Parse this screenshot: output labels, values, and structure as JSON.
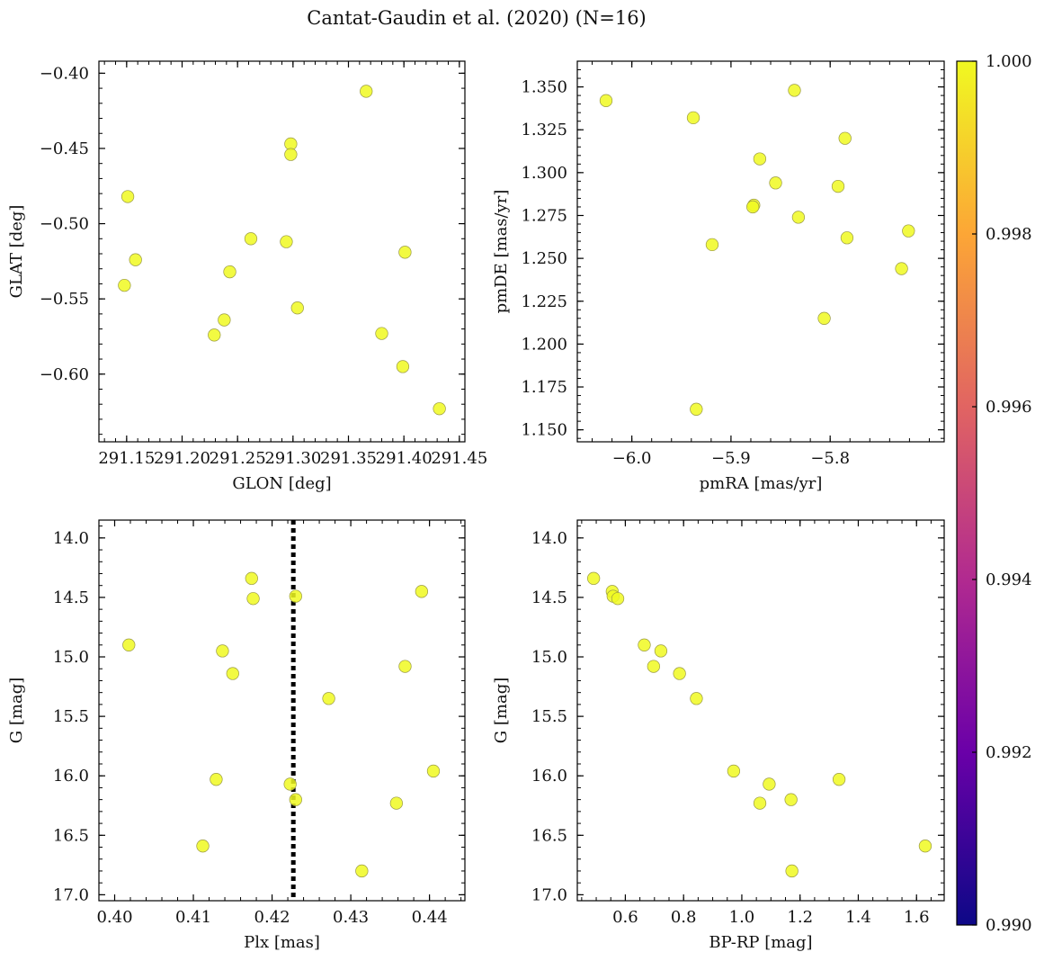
{
  "figure": {
    "title": "Cantat-Gaudin et al. (2020) (N=16)",
    "marker_color": "#f0f921",
    "colorbar": {
      "min": 0.99,
      "max": 1.0,
      "ticks": [
        "0.990",
        "0.992",
        "0.994",
        "0.996",
        "0.998",
        "1.000"
      ],
      "colormap": [
        "#0d0887",
        "#6a00a8",
        "#b12a90",
        "#e16462",
        "#fca636",
        "#f0f921"
      ]
    }
  },
  "chart_data": [
    {
      "type": "scatter",
      "xlabel": "GLON [deg]",
      "ylabel": "GLAT [deg]",
      "xlim": [
        291.125,
        291.455
      ],
      "ylim": [
        -0.645,
        -0.392
      ],
      "xticks": [
        291.15,
        291.2,
        291.25,
        291.3,
        291.35,
        291.4,
        291.45
      ],
      "xtick_labels": [
        "291.15",
        "291.20",
        "291.25",
        "291.30",
        "291.35",
        "291.40",
        "291.45"
      ],
      "yticks": [
        -0.4,
        -0.45,
        -0.5,
        -0.55,
        -0.6
      ],
      "ytick_labels": [
        "−0.40",
        "−0.45",
        "−0.50",
        "−0.55",
        "−0.60"
      ],
      "x_minor_step": 0.01,
      "y_minor_step": 0.01,
      "invert_y": false,
      "points": [
        [
          291.151,
          -0.482
        ],
        [
          291.158,
          -0.524
        ],
        [
          291.148,
          -0.541
        ],
        [
          291.229,
          -0.574
        ],
        [
          291.238,
          -0.564
        ],
        [
          291.243,
          -0.532
        ],
        [
          291.262,
          -0.51
        ],
        [
          291.294,
          -0.512
        ],
        [
          291.298,
          -0.447
        ],
        [
          291.298,
          -0.454
        ],
        [
          291.304,
          -0.556
        ],
        [
          291.366,
          -0.412
        ],
        [
          291.38,
          -0.573
        ],
        [
          291.401,
          -0.519
        ],
        [
          291.399,
          -0.595
        ],
        [
          291.432,
          -0.623
        ]
      ]
    },
    {
      "type": "scatter",
      "xlabel": "pmRA [mas/yr]",
      "ylabel": "pmDE [mas/yr]",
      "xlim": [
        -6.055,
        -5.685
      ],
      "ylim": [
        1.143,
        1.365
      ],
      "xticks": [
        -6.0,
        -5.9,
        -5.8
      ],
      "xtick_labels": [
        "−6.0",
        "−5.9",
        "−5.8"
      ],
      "yticks": [
        1.15,
        1.175,
        1.2,
        1.225,
        1.25,
        1.275,
        1.3,
        1.325,
        1.35
      ],
      "ytick_labels": [
        "1.150",
        "1.175",
        "1.200",
        "1.225",
        "1.250",
        "1.275",
        "1.300",
        "1.325",
        "1.350"
      ],
      "x_minor_step": 0.02,
      "y_minor_step": 0.005,
      "invert_y": false,
      "points": [
        [
          -6.026,
          1.342
        ],
        [
          -5.938,
          1.332
        ],
        [
          -5.935,
          1.162
        ],
        [
          -5.919,
          1.258
        ],
        [
          -5.877,
          1.281
        ],
        [
          -5.878,
          1.28
        ],
        [
          -5.871,
          1.308
        ],
        [
          -5.855,
          1.294
        ],
        [
          -5.836,
          1.348
        ],
        [
          -5.832,
          1.274
        ],
        [
          -5.806,
          1.215
        ],
        [
          -5.792,
          1.292
        ],
        [
          -5.785,
          1.32
        ],
        [
          -5.783,
          1.262
        ],
        [
          -5.728,
          1.244
        ],
        [
          -5.721,
          1.266
        ]
      ]
    },
    {
      "type": "scatter",
      "xlabel": "Plx [mas]",
      "ylabel": "G [mag]",
      "xlim": [
        0.398,
        0.4445
      ],
      "ylim": [
        13.85,
        17.05
      ],
      "xticks": [
        0.4,
        0.41,
        0.42,
        0.43,
        0.44
      ],
      "xtick_labels": [
        "0.40",
        "0.41",
        "0.42",
        "0.43",
        "0.44"
      ],
      "yticks": [
        14.0,
        14.5,
        15.0,
        15.5,
        16.0,
        16.5,
        17.0
      ],
      "ytick_labels": [
        "14.0",
        "14.5",
        "15.0",
        "15.5",
        "16.0",
        "16.5",
        "17.0"
      ],
      "x_minor_step": 0.002,
      "y_minor_step": 0.1,
      "invert_y": true,
      "vline": 0.4227,
      "points": [
        [
          0.4018,
          14.9
        ],
        [
          0.4112,
          16.59
        ],
        [
          0.4129,
          16.03
        ],
        [
          0.4137,
          14.95
        ],
        [
          0.415,
          15.14
        ],
        [
          0.4174,
          14.34
        ],
        [
          0.4176,
          14.51
        ],
        [
          0.4223,
          16.07
        ],
        [
          0.423,
          16.2
        ],
        [
          0.423,
          14.49
        ],
        [
          0.4272,
          15.35
        ],
        [
          0.4314,
          16.8
        ],
        [
          0.4358,
          16.23
        ],
        [
          0.4369,
          15.08
        ],
        [
          0.439,
          14.45
        ],
        [
          0.4405,
          15.96
        ]
      ]
    },
    {
      "type": "scatter",
      "xlabel": "BP-RP [mag]",
      "ylabel": "G [mag]",
      "xlim": [
        0.435,
        1.695
      ],
      "ylim": [
        13.85,
        17.05
      ],
      "xticks": [
        0.6,
        0.8,
        1.0,
        1.2,
        1.4,
        1.6
      ],
      "xtick_labels": [
        "0.6",
        "0.8",
        "1.0",
        "1.2",
        "1.4",
        "1.6"
      ],
      "yticks": [
        14.0,
        14.5,
        15.0,
        15.5,
        16.0,
        16.5,
        17.0
      ],
      "ytick_labels": [
        "14.0",
        "14.5",
        "15.0",
        "15.5",
        "16.0",
        "16.5",
        "17.0"
      ],
      "x_minor_step": 0.05,
      "y_minor_step": 0.1,
      "invert_y": true,
      "points": [
        [
          0.491,
          14.34
        ],
        [
          0.555,
          14.45
        ],
        [
          0.558,
          14.49
        ],
        [
          0.574,
          14.51
        ],
        [
          0.665,
          14.9
        ],
        [
          0.722,
          14.95
        ],
        [
          0.697,
          15.08
        ],
        [
          0.786,
          15.14
        ],
        [
          0.844,
          15.35
        ],
        [
          0.972,
          15.96
        ],
        [
          1.062,
          16.23
        ],
        [
          1.094,
          16.07
        ],
        [
          1.169,
          16.2
        ],
        [
          1.172,
          16.8
        ],
        [
          1.334,
          16.03
        ],
        [
          1.63,
          16.59
        ]
      ]
    }
  ]
}
